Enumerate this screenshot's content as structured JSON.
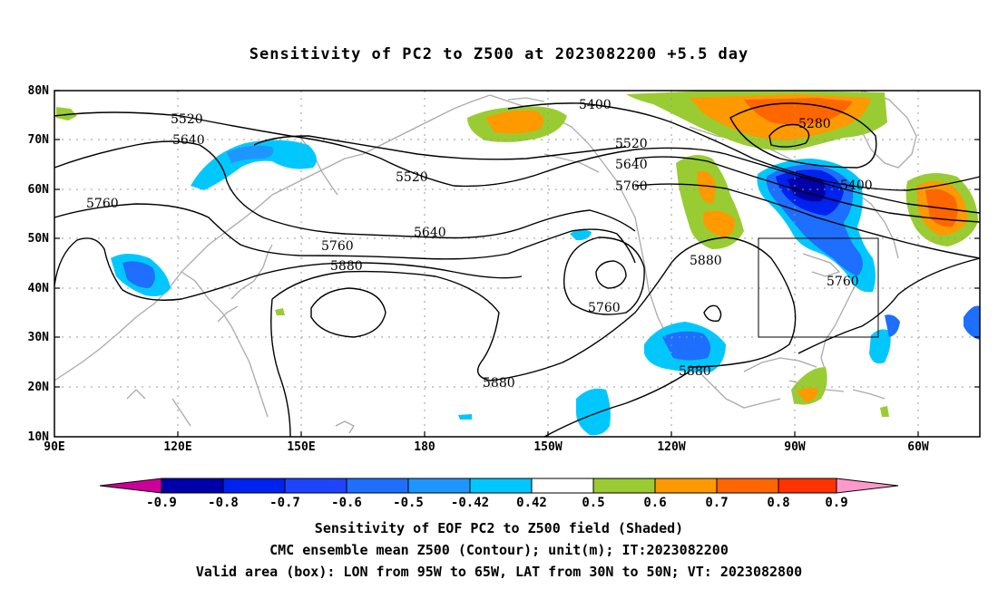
{
  "title": "Sensitivity of PC2 to Z500 at 2023082200 +5.5 day",
  "axes": {
    "lat_labels": [
      "80N",
      "70N",
      "60N",
      "50N",
      "40N",
      "30N",
      "20N",
      "10N"
    ],
    "lon_labels": [
      "90E",
      "120E",
      "150E",
      "180",
      "150W",
      "120W",
      "90W",
      "60W"
    ]
  },
  "contour_labels": [
    "5400",
    "5520",
    "5640",
    "5760",
    "5880",
    "5280"
  ],
  "colorbar": {
    "colors": [
      "#cc0099",
      "#0000aa",
      "#0022ee",
      "#1e44ff",
      "#1e6eff",
      "#1e96ff",
      "#00c8ff",
      "#ffffff",
      "#99cc33",
      "#ff9900",
      "#ff6600",
      "#ff3300",
      "#ff0000",
      "#ff99cc"
    ],
    "labels": [
      "-0.9",
      "-0.8",
      "-0.7",
      "-0.6",
      "-0.5",
      "-0.42",
      "0.42",
      "0.5",
      "0.6",
      "0.7",
      "0.8",
      "0.9"
    ]
  },
  "box": {
    "lon_min": "95W",
    "lon_max": "65W",
    "lat_min": "30N",
    "lat_max": "50N"
  },
  "captions": [
    "Sensitivity of EOF PC2 to Z500 field (Shaded)",
    "CMC ensemble mean Z500 (Contour); unit(m); IT:2023082200",
    "Valid area (box): LON from 95W to 65W, LAT from 30N to 50N; VT: 2023082800"
  ]
}
